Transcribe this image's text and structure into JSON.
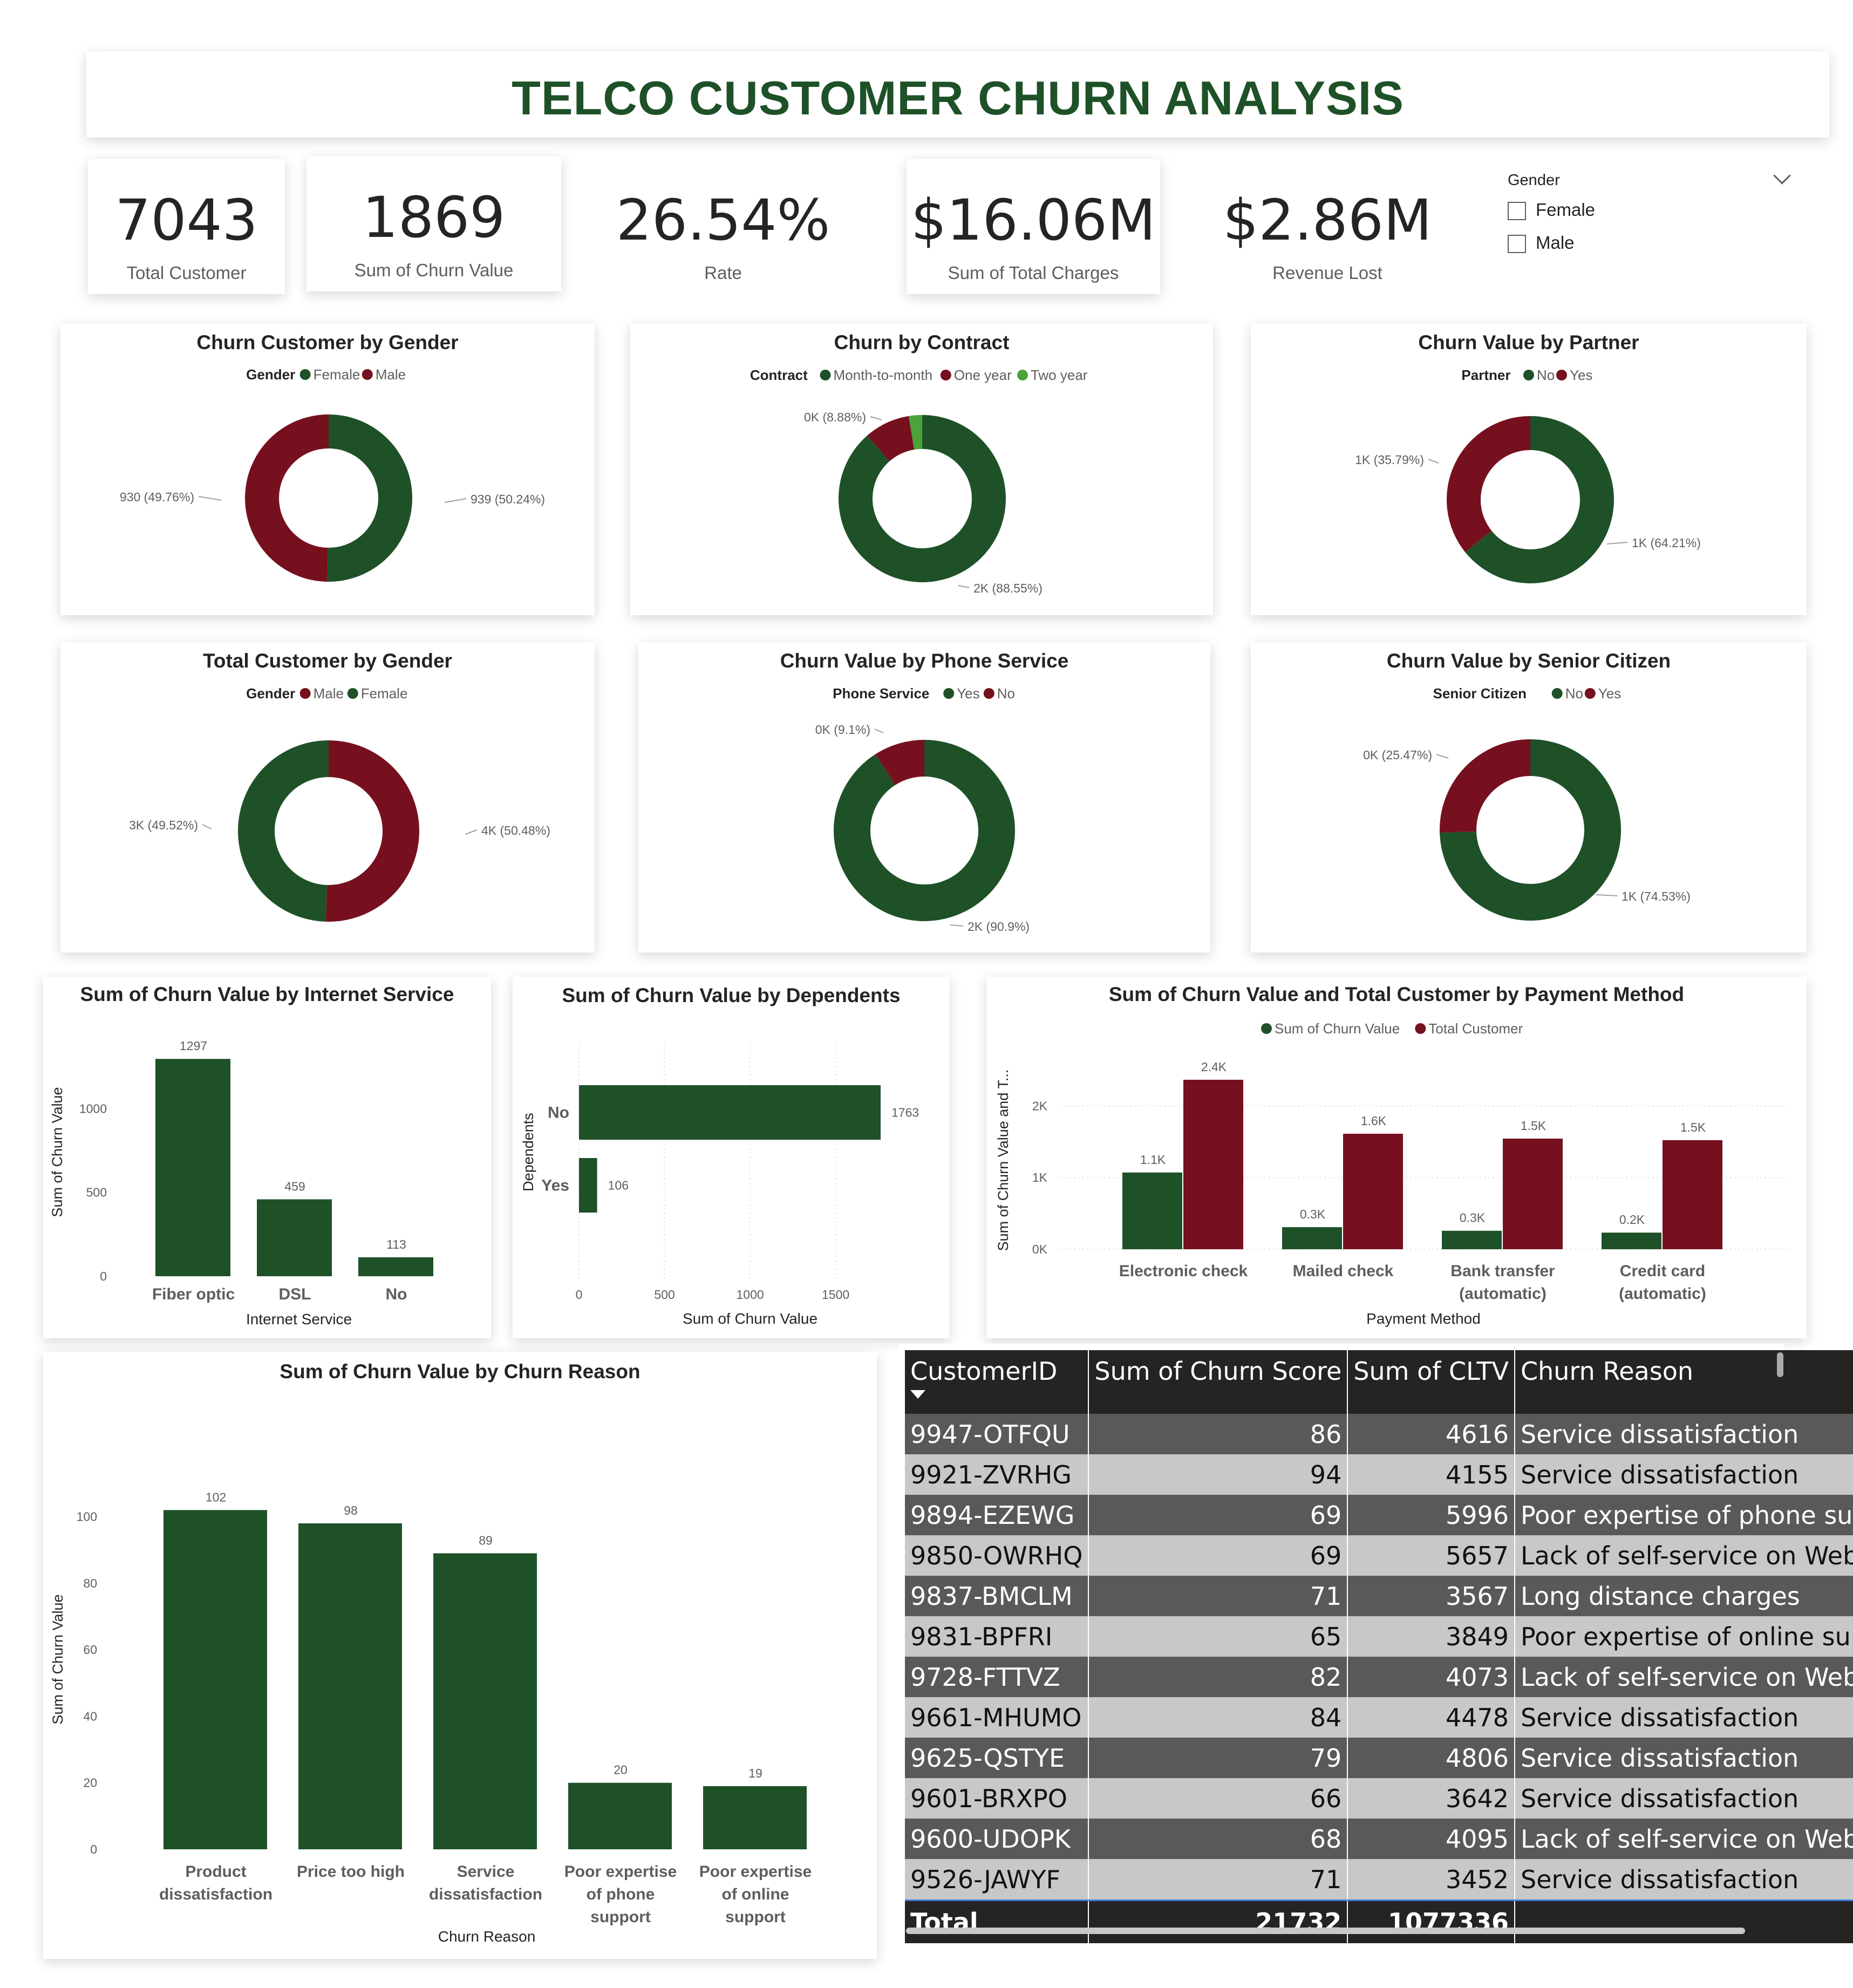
{
  "title": "TELCO CUSTOMER CHURN ANALYSIS",
  "kpis": {
    "total_customer": {
      "value": "7043",
      "label": "Total Customer"
    },
    "churn_value": {
      "value": "1869",
      "label": "Sum of Churn Value"
    },
    "rate": {
      "value": "26.54%",
      "label": "Rate"
    },
    "total_charges": {
      "value": "$16.06M",
      "label": "Sum of Total Charges"
    },
    "revenue_lost": {
      "value": "$2.86M",
      "label": "Revenue Lost"
    }
  },
  "slicer": {
    "title": "Gender",
    "options": [
      "Female",
      "Male"
    ],
    "icon": "chevron-down-icon"
  },
  "colors": {
    "green": "#1e5128",
    "maroon": "#76101f",
    "lightgreen": "#4aa33b"
  },
  "chart_data": [
    {
      "id": "churn-gender",
      "type": "donut",
      "title": "Churn Customer by Gender",
      "legend_title": "Gender",
      "slices": [
        {
          "name": "Female",
          "value": 939,
          "label": "939 (50.24%)",
          "color": "#1e5128"
        },
        {
          "name": "Male",
          "value": 930,
          "label": "930 (49.76%)",
          "color": "#76101f"
        }
      ]
    },
    {
      "id": "churn-contract",
      "type": "donut",
      "title": "Churn by Contract",
      "legend_title": "Contract",
      "slices": [
        {
          "name": "Month-to-month",
          "value": 88.55,
          "label": "2K (88.55%)",
          "color": "#1e5128"
        },
        {
          "name": "One year",
          "value": 8.88,
          "label": "0K (8.88%)",
          "color": "#76101f"
        },
        {
          "name": "Two year",
          "value": 2.57,
          "label": "",
          "color": "#4aa33b"
        }
      ]
    },
    {
      "id": "churn-partner",
      "type": "donut",
      "title": "Churn Value by Partner",
      "legend_title": "Partner",
      "slices": [
        {
          "name": "No",
          "value": 64.21,
          "label": "1K (64.21%)",
          "color": "#1e5128"
        },
        {
          "name": "Yes",
          "value": 35.79,
          "label": "1K (35.79%)",
          "color": "#76101f"
        }
      ]
    },
    {
      "id": "total-gender",
      "type": "donut",
      "title": "Total Customer by Gender",
      "legend_title": "Gender",
      "slices": [
        {
          "name": "Male",
          "value": 50.48,
          "label": "4K (50.48%)",
          "color": "#76101f"
        },
        {
          "name": "Female",
          "value": 49.52,
          "label": "3K (49.52%)",
          "color": "#1e5128"
        }
      ]
    },
    {
      "id": "churn-phone",
      "type": "donut",
      "title": "Churn Value by Phone Service",
      "legend_title": "Phone Service",
      "slices": [
        {
          "name": "Yes",
          "value": 90.9,
          "label": "2K (90.9%)",
          "color": "#1e5128"
        },
        {
          "name": "No",
          "value": 9.1,
          "label": "0K (9.1%)",
          "color": "#76101f"
        }
      ]
    },
    {
      "id": "churn-senior",
      "type": "donut",
      "title": "Churn Value by Senior Citizen",
      "legend_title": "Senior Citizen",
      "slices": [
        {
          "name": "No",
          "value": 74.53,
          "label": "1K (74.53%)",
          "color": "#1e5128"
        },
        {
          "name": "Yes",
          "value": 25.47,
          "label": "0K (25.47%)",
          "color": "#76101f"
        }
      ]
    },
    {
      "id": "internet-service",
      "type": "bar",
      "title": "Sum of Churn Value by Internet Service",
      "categories": [
        "Fiber optic",
        "DSL",
        "No"
      ],
      "values": [
        1297,
        459,
        113
      ],
      "data_labels": [
        "1297",
        "459",
        "113"
      ],
      "xlabel": "Internet Service",
      "ylabel": "Sum of Churn Value",
      "ylim": [
        0,
        1330
      ],
      "yticks": [
        0,
        500,
        1000
      ],
      "grid": false
    },
    {
      "id": "dependents",
      "type": "bar",
      "orientation": "horizontal",
      "title": "Sum of Churn Value by Dependents",
      "categories": [
        "No",
        "Yes"
      ],
      "values": [
        1763,
        106
      ],
      "data_labels": [
        "1763",
        "106"
      ],
      "xlabel": "Sum of Churn Value",
      "ylabel": "Dependents",
      "xlim": [
        0,
        1800
      ],
      "xticks": [
        0,
        500,
        1000,
        1500
      ],
      "grid": true
    },
    {
      "id": "payment-method",
      "type": "bar",
      "title": "Sum of Churn Value and Total Customer by Payment Method",
      "categories": [
        [
          "Electronic check"
        ],
        [
          "Mailed check"
        ],
        [
          "Bank transfer",
          "(automatic)"
        ],
        [
          "Credit card",
          "(automatic)"
        ]
      ],
      "series": [
        {
          "name": "Sum of Churn Value",
          "values": [
            1071,
            308,
            258,
            232
          ],
          "data_labels": [
            "1.1K",
            "0.3K",
            "0.3K",
            "0.2K"
          ],
          "color": "#1e5128"
        },
        {
          "name": "Total Customer",
          "values": [
            2365,
            1612,
            1544,
            1522
          ],
          "data_labels": [
            "2.4K",
            "1.6K",
            "1.5K",
            "1.5K"
          ],
          "color": "#76101f"
        }
      ],
      "xlabel": "Payment Method",
      "ylabel": "Sum of Churn Value and T...",
      "ylim": [
        0,
        2500
      ],
      "yticks": [
        0,
        1000,
        2000
      ],
      "ytick_labels": [
        "0K",
        "1K",
        "2K"
      ],
      "grid": true
    },
    {
      "id": "churn-reason",
      "type": "bar",
      "title": "Sum of Churn Value by Churn Reason",
      "categories": [
        [
          "Product",
          "dissatisfaction"
        ],
        [
          "Price too high"
        ],
        [
          "Service",
          "dissatisfaction"
        ],
        [
          "Poor expertise",
          "of phone",
          "support"
        ],
        [
          "Poor expertise",
          "of online",
          "support"
        ]
      ],
      "values": [
        102,
        98,
        89,
        20,
        19
      ],
      "data_labels": [
        "102",
        "98",
        "89",
        "20",
        "19"
      ],
      "xlabel": "Churn Reason",
      "ylabel": "Sum of Churn Value",
      "ylim": [
        0,
        104
      ],
      "yticks": [
        0,
        20,
        40,
        60,
        80,
        100
      ],
      "grid": false
    }
  ],
  "table": {
    "columns": [
      "CustomerID",
      "Sum of Churn Score",
      "Sum of CLTV",
      "Churn Reason"
    ],
    "rows": [
      [
        "9947-OTFQU",
        "86",
        "4616",
        "Service dissatisfaction"
      ],
      [
        "9921-ZVRHG",
        "94",
        "4155",
        "Service dissatisfaction"
      ],
      [
        "9894-EZEWG",
        "69",
        "5996",
        "Poor expertise of phone suppo"
      ],
      [
        "9850-OWRHQ",
        "69",
        "5657",
        "Lack of self-service on Website"
      ],
      [
        "9837-BMCLM",
        "71",
        "3567",
        "Long distance charges"
      ],
      [
        "9831-BPFRI",
        "65",
        "3849",
        "Poor expertise of online suppo"
      ],
      [
        "9728-FTTVZ",
        "82",
        "4073",
        "Lack of self-service on Website"
      ],
      [
        "9661-MHUMO",
        "84",
        "4478",
        "Service dissatisfaction"
      ],
      [
        "9625-QSTYE",
        "79",
        "4806",
        "Service dissatisfaction"
      ],
      [
        "9601-BRXPO",
        "66",
        "3642",
        "Service dissatisfaction"
      ],
      [
        "9600-UDOPK",
        "68",
        "4095",
        "Lack of self-service on Website"
      ],
      [
        "9526-JAWYF",
        "71",
        "3452",
        "Service dissatisfaction"
      ]
    ],
    "total": [
      "Total",
      "21732",
      "1077336",
      ""
    ]
  }
}
